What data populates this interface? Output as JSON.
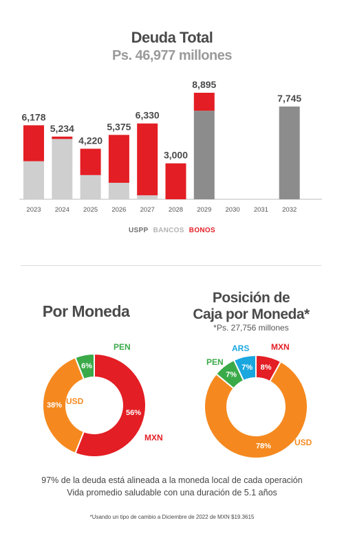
{
  "header": {
    "title": "Deuda Total",
    "subtitle": "Ps. 46,977 millones"
  },
  "legend": {
    "uspp": "USPP",
    "bancos": "BANCOS",
    "bonos": "BONOS"
  },
  "colors": {
    "red": "#e31e24",
    "light_gray": "#cfcfd0",
    "dark_gray": "#8c8c8c",
    "orange": "#f5891f",
    "green": "#3aaa49",
    "blue": "#1aa6df",
    "legend_gray": "#6d6d6d",
    "legend_light": "#b3b3b3"
  },
  "chart_data": [
    {
      "type": "bar",
      "stacked": true,
      "title": "Deuda Total",
      "subtitle": "Ps. 46,977 millones",
      "categories": [
        "2023",
        "2024",
        "2025",
        "2026",
        "2027",
        "2028",
        "2029",
        "2030",
        "2031",
        "2032"
      ],
      "totals": [
        "6,178",
        "5,234",
        "4,220",
        "5,375",
        "6,330",
        "3,000",
        "8,895",
        "",
        "",
        "7,745"
      ],
      "series": [
        {
          "name": "USPP",
          "color": "#8c8c8c",
          "values": [
            0,
            0,
            0,
            0,
            0,
            0,
            7395,
            0,
            0,
            7745
          ]
        },
        {
          "name": "BANCOS",
          "color": "#cfcfd0",
          "values": [
            3178,
            5034,
            2020,
            1375,
            330,
            0,
            0,
            0,
            0,
            0
          ]
        },
        {
          "name": "BONOS",
          "color": "#e31e24",
          "values": [
            3000,
            200,
            2200,
            4000,
            6000,
            3000,
            1500,
            0,
            0,
            0
          ]
        }
      ],
      "ylim": [
        0,
        8895
      ]
    },
    {
      "type": "pie",
      "title": "Por Moneda",
      "slices": [
        {
          "label": "MXN",
          "value": 56,
          "pct": "56%",
          "color": "#e31e24"
        },
        {
          "label": "USD",
          "value": 38,
          "pct": "38%",
          "color": "#f5891f"
        },
        {
          "label": "PEN",
          "value": 6,
          "pct": "6%",
          "color": "#3aaa49"
        }
      ]
    },
    {
      "type": "pie",
      "title": "Posición de Caja por Moneda*",
      "subtitle": "*Ps. 27,756 millones",
      "slices": [
        {
          "label": "MXN",
          "value": 8,
          "pct": "8%",
          "color": "#e31e24"
        },
        {
          "label": "USD",
          "value": 78,
          "pct": "78%",
          "color": "#f5891f"
        },
        {
          "label": "PEN",
          "value": 7,
          "pct": "7%",
          "color": "#3aaa49"
        },
        {
          "label": "ARS",
          "value": 7,
          "pct": "7%",
          "color": "#1aa6df"
        }
      ]
    }
  ],
  "pie1": {
    "title": "Por Moneda"
  },
  "pie2": {
    "title_line1": "Posición de",
    "title_line2": "Caja por Moneda*",
    "subtitle": "*Ps. 27,756 millones"
  },
  "notes": {
    "line1": "97% de la deuda está alineada a la moneda local de cada operación",
    "line2": "Vida promedio saludable con una duración de 5.1 años",
    "footnote": "*Usando un tipo de cambio a Diciembre de 2022 de MXN $19.3615"
  }
}
